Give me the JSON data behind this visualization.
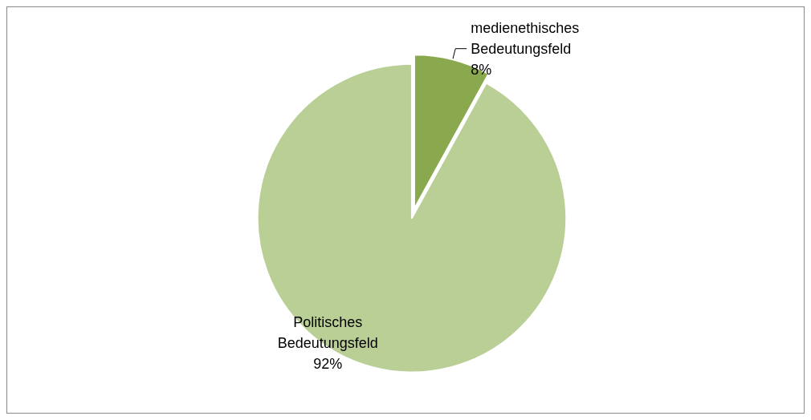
{
  "chart_data": {
    "type": "pie",
    "categories": [
      "medienethisches Bedeutungsfeld",
      "Politisches Bedeutungsfeld"
    ],
    "values": [
      8,
      92
    ],
    "colors": [
      "#8aa84e",
      "#b9cf96"
    ],
    "value_labels": [
      "8%",
      "92%"
    ]
  }
}
